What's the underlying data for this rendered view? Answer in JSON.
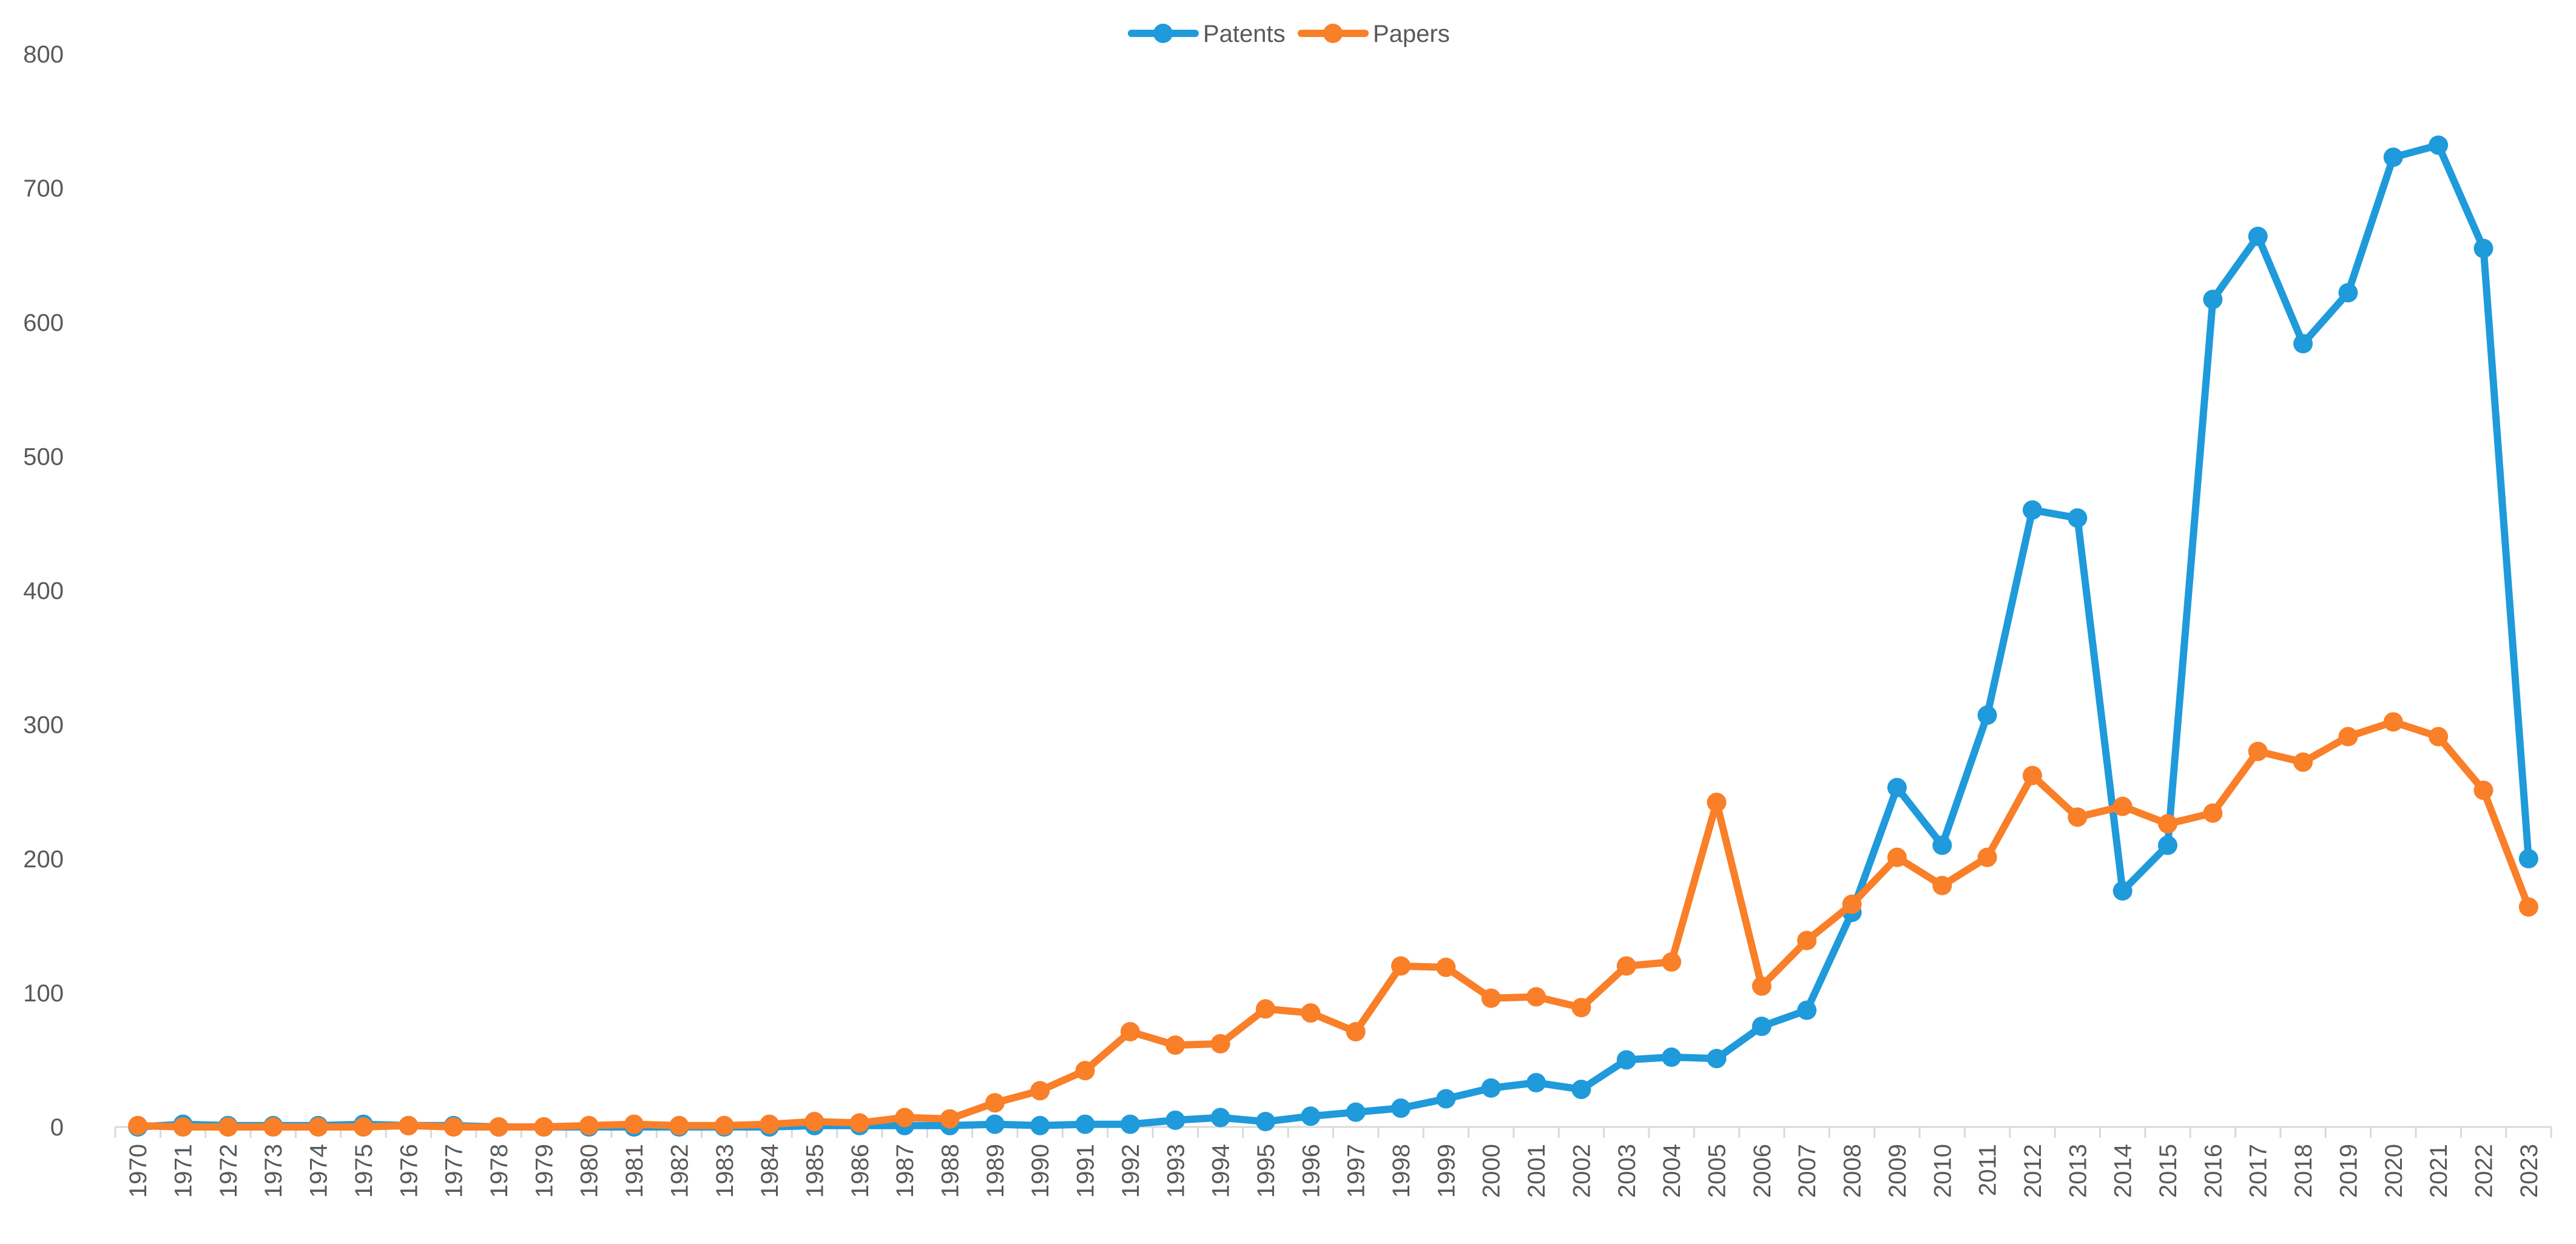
{
  "chart_data": {
    "type": "line",
    "title": "",
    "xlabel": "",
    "ylabel": "",
    "ylim": [
      0,
      800
    ],
    "yticks": [
      0,
      100,
      200,
      300,
      400,
      500,
      600,
      700,
      800
    ],
    "grid": false,
    "legend_position": "top-center",
    "categories": [
      "1970",
      "1971",
      "1972",
      "1973",
      "1974",
      "1975",
      "1976",
      "1977",
      "1978",
      "1979",
      "1980",
      "1981",
      "1982",
      "1983",
      "1984",
      "1985",
      "1986",
      "1987",
      "1988",
      "1989",
      "1990",
      "1991",
      "1992",
      "1993",
      "1994",
      "1995",
      "1996",
      "1997",
      "1998",
      "1999",
      "2000",
      "2001",
      "2002",
      "2003",
      "2004",
      "2005",
      "2006",
      "2007",
      "2008",
      "2009",
      "2010",
      "2011",
      "2012",
      "2013",
      "2014",
      "2015",
      "2016",
      "2017",
      "2018",
      "2019",
      "2020",
      "2021",
      "2022",
      "2023"
    ],
    "series": [
      {
        "name": "Patents",
        "color": "#1F9ADB",
        "values": [
          0,
          2,
          1,
          1,
          1,
          2,
          1,
          1,
          0,
          0,
          0,
          0,
          0,
          0,
          0,
          1,
          1,
          1,
          1,
          2,
          1,
          2,
          2,
          5,
          7,
          4,
          8,
          11,
          14,
          21,
          29,
          33,
          28,
          50,
          52,
          51,
          75,
          87,
          160,
          253,
          210,
          307,
          460,
          454,
          176,
          210,
          617,
          664,
          584,
          622,
          723,
          732,
          655,
          200
        ]
      },
      {
        "name": "Papers",
        "color": "#F97F28",
        "values": [
          1,
          0,
          0,
          0,
          0,
          0,
          1,
          0,
          0,
          0,
          1,
          2,
          1,
          1,
          2,
          4,
          3,
          7,
          6,
          18,
          27,
          42,
          71,
          61,
          62,
          88,
          85,
          71,
          120,
          119,
          96,
          97,
          89,
          120,
          123,
          242,
          105,
          139,
          166,
          201,
          180,
          201,
          262,
          231,
          239,
          226,
          234,
          280,
          272,
          291,
          302,
          291,
          251,
          164
        ]
      }
    ]
  }
}
